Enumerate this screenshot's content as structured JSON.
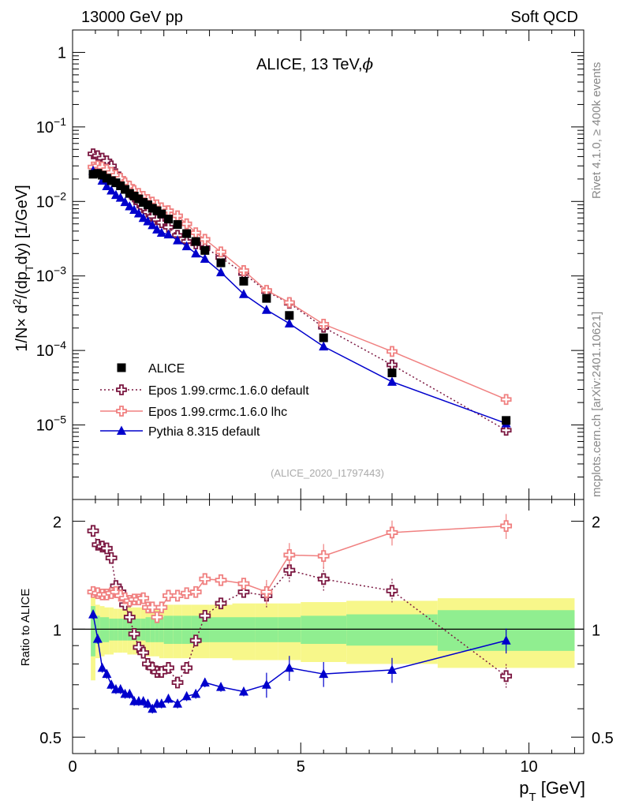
{
  "header": {
    "left": "13000 GeV pp",
    "right": "Soft QCD"
  },
  "side_labels": {
    "rivet": "Rivet 4.1.0, ≥ 400k events",
    "mcplots": "mcplots.cern.ch [arXiv:2401.10621]"
  },
  "chart_data": {
    "type": "scatter",
    "title": "ALICE, 13 TeV,",
    "title_symbol": "ϕ",
    "analysis_id": "(ALICE_2020_I1797443)",
    "xlabel": "p",
    "xlabel_sub": "T",
    "xlabel_unit": " [GeV]",
    "ylabel": "1/N × d²/(dp_T dy) [1/GeV]",
    "ratio_ylabel": "Ratio to ALICE",
    "xlim": [
      0,
      11.2
    ],
    "ylim": [
      1e-06,
      2
    ],
    "ratio_ylim": [
      0.45,
      2.3
    ],
    "yscale": "log",
    "x_ticks": [
      0,
      5,
      10
    ],
    "y_ticks": [
      "1e-5",
      "1e-4",
      "1e-3",
      "1e-2",
      "1e-1",
      "1"
    ],
    "y_tick_labels": [
      {
        "base": "10",
        "exp": "−5"
      },
      {
        "base": "10",
        "exp": "−4"
      },
      {
        "base": "10",
        "exp": "−3"
      },
      {
        "base": "10",
        "exp": "−2"
      },
      {
        "base": "10",
        "exp": "−1"
      },
      {
        "base": "1",
        "exp": ""
      }
    ],
    "ratio_ticks": [
      0.5,
      1,
      2
    ],
    "ratio_tick_labels": [
      "0.5",
      "1",
      "2"
    ],
    "legend_position": "bottom-left",
    "x": [
      0.45,
      0.55,
      0.65,
      0.75,
      0.85,
      0.95,
      1.05,
      1.15,
      1.25,
      1.35,
      1.45,
      1.55,
      1.65,
      1.75,
      1.85,
      1.95,
      2.1,
      2.3,
      2.5,
      2.7,
      2.9,
      3.25,
      3.75,
      4.25,
      4.75,
      5.5,
      7.0,
      9.5
    ],
    "series": [
      {
        "name": "ALICE",
        "style": "data",
        "color": "#000000",
        "values": [
          0.0232,
          0.0238,
          0.0225,
          0.0205,
          0.019,
          0.0178,
          0.0162,
          0.0145,
          0.0128,
          0.0118,
          0.0108,
          0.0097,
          0.009,
          0.0081,
          0.0075,
          0.0068,
          0.0058,
          0.0049,
          0.0037,
          0.0029,
          0.0022,
          0.0015,
          0.00085,
          0.0005,
          0.000295,
          0.000148,
          5e-05,
          1.15e-05
        ],
        "ratio": [
          1,
          1,
          1,
          1,
          1,
          1,
          1,
          1,
          1,
          1,
          1,
          1,
          1,
          1,
          1,
          1,
          1,
          1,
          1,
          1,
          1,
          1,
          1,
          1,
          1,
          1,
          1,
          1
        ]
      },
      {
        "name": "Epos 1.99.crmc.1.6.0 default",
        "style": "open-cross-dotted",
        "color": "#7b1741",
        "values": [
          0.0435,
          0.041,
          0.038,
          0.035,
          0.03,
          0.0235,
          0.0205,
          0.017,
          0.0138,
          0.0115,
          0.0096,
          0.0083,
          0.0072,
          0.0063,
          0.0057,
          0.0052,
          0.0045,
          0.0035,
          0.0029,
          0.0027,
          0.0024,
          0.00177,
          0.00108,
          0.00062,
          0.00043,
          0.000205,
          6.4e-05,
          8.5e-06
        ],
        "ratio": [
          1.88,
          1.72,
          1.7,
          1.68,
          1.58,
          1.32,
          1.27,
          1.17,
          1.08,
          0.97,
          0.89,
          0.86,
          0.8,
          0.78,
          0.76,
          0.76,
          0.78,
          0.71,
          0.78,
          0.93,
          1.09,
          1.18,
          1.27,
          1.24,
          1.46,
          1.38,
          1.28,
          0.74
        ]
      },
      {
        "name": "Epos 1.99.crmc.1.6.0 lhc",
        "style": "open-cross-solid",
        "color": "#f08080",
        "values": [
          0.029,
          0.03,
          0.029,
          0.0268,
          0.0245,
          0.0225,
          0.0205,
          0.0178,
          0.016,
          0.014,
          0.0128,
          0.0117,
          0.0106,
          0.0098,
          0.009,
          0.0082,
          0.0075,
          0.0064,
          0.005,
          0.0038,
          0.0031,
          0.0021,
          0.00118,
          0.00064,
          0.00044,
          0.000225,
          9.7e-05,
          2.2e-05
        ],
        "ratio": [
          1.27,
          1.26,
          1.25,
          1.25,
          1.26,
          1.27,
          1.24,
          1.22,
          1.2,
          1.21,
          1.21,
          1.22,
          1.15,
          1.15,
          1.08,
          1.15,
          1.24,
          1.24,
          1.26,
          1.27,
          1.38,
          1.37,
          1.34,
          1.27,
          1.61,
          1.6,
          1.86,
          1.94
        ]
      },
      {
        "name": "Pythia 8.315 default",
        "style": "filled-triangle",
        "color": "#0000cc",
        "values": [
          0.0258,
          0.0237,
          0.019,
          0.016,
          0.014,
          0.0122,
          0.0112,
          0.0098,
          0.0086,
          0.0077,
          0.0069,
          0.006,
          0.0054,
          0.0048,
          0.0042,
          0.0038,
          0.0036,
          0.003,
          0.0025,
          0.002,
          0.0017,
          0.00112,
          0.00057,
          0.00035,
          0.00023,
          0.000113,
          3.8e-05,
          1.05e-05
        ],
        "ratio": [
          1.1,
          0.94,
          0.78,
          0.75,
          0.7,
          0.68,
          0.68,
          0.66,
          0.66,
          0.63,
          0.63,
          0.63,
          0.62,
          0.6,
          0.62,
          0.62,
          0.64,
          0.62,
          0.65,
          0.66,
          0.71,
          0.69,
          0.67,
          0.7,
          0.78,
          0.75,
          0.77,
          0.93
        ]
      }
    ],
    "uncertainty_bands": {
      "x_edges": [
        0.4,
        0.5,
        0.6,
        0.7,
        0.8,
        0.9,
        1.0,
        1.1,
        1.2,
        1.3,
        1.4,
        1.5,
        1.6,
        1.7,
        1.8,
        1.9,
        2.0,
        2.2,
        2.4,
        2.6,
        2.8,
        3.0,
        3.5,
        4.0,
        4.5,
        5.0,
        6.0,
        8.0,
        11.0
      ],
      "stat": [
        0.16,
        0.09,
        0.08,
        0.08,
        0.07,
        0.07,
        0.07,
        0.07,
        0.07,
        0.07,
        0.07,
        0.07,
        0.08,
        0.08,
        0.08,
        0.08,
        0.09,
        0.09,
        0.09,
        0.09,
        0.08,
        0.08,
        0.08,
        0.08,
        0.08,
        0.09,
        0.1,
        0.13
      ],
      "total": [
        0.28,
        0.17,
        0.16,
        0.15,
        0.15,
        0.14,
        0.14,
        0.14,
        0.15,
        0.15,
        0.15,
        0.15,
        0.16,
        0.16,
        0.16,
        0.17,
        0.17,
        0.17,
        0.17,
        0.17,
        0.17,
        0.17,
        0.18,
        0.18,
        0.18,
        0.19,
        0.2,
        0.22
      ],
      "stat_color": "#90ee90",
      "total_color": "#f7f78a"
    }
  }
}
